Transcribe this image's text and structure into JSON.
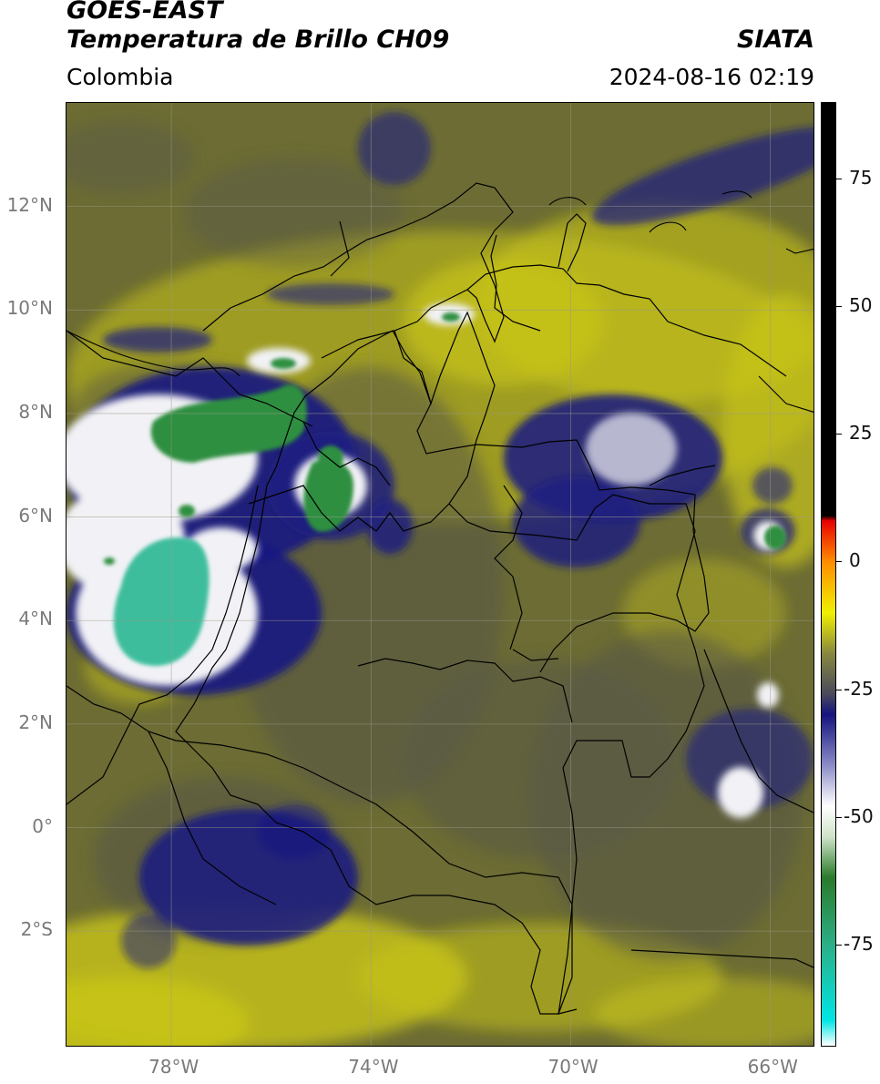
{
  "header": {
    "satellite": "GOES-EAST",
    "product": "Temperatura de Brillo CH09",
    "region": "Colombia",
    "agency": "SIATA",
    "datetime": "2024-08-16 02:19"
  },
  "map": {
    "lon_range": [
      -80.1,
      -65.1
    ],
    "lat_range": [
      -4.25,
      14.0
    ],
    "lat_ticks": [
      {
        "value": 12,
        "label": "12°N"
      },
      {
        "value": 10,
        "label": "10°N"
      },
      {
        "value": 8,
        "label": "8°N"
      },
      {
        "value": 6,
        "label": "6°N"
      },
      {
        "value": 4,
        "label": "4°N"
      },
      {
        "value": 2,
        "label": "2°N"
      },
      {
        "value": 0,
        "label": "0°"
      },
      {
        "value": -2,
        "label": "2°S"
      }
    ],
    "lon_ticks": [
      {
        "value": -78,
        "label": "78°W"
      },
      {
        "value": -74,
        "label": "74°W"
      },
      {
        "value": -70,
        "label": "70°W"
      },
      {
        "value": -66,
        "label": "66°W"
      }
    ],
    "grid": true,
    "colors": {
      "background": "#6c6c34",
      "warm_yellow": "#c8c418",
      "gray": "#585848",
      "dark_blue": "#1a1a82",
      "white": "#f2f2f6",
      "green": "#2f8f3f",
      "teal": "#3ebd9c",
      "coast": "#000000",
      "grid": "#9a9a8a"
    }
  },
  "colorbar": {
    "range": [
      -95,
      90
    ],
    "ticks": [
      {
        "value": 75,
        "label": "75"
      },
      {
        "value": 50,
        "label": "50"
      },
      {
        "value": 25,
        "label": "25"
      },
      {
        "value": 0,
        "label": "0"
      },
      {
        "value": -25,
        "label": "-25"
      },
      {
        "value": -50,
        "label": "-50"
      },
      {
        "value": -75,
        "label": "-75"
      }
    ],
    "stops": [
      {
        "value": -95,
        "color": "#ffffff"
      },
      {
        "value": -90,
        "color": "#00e5e5"
      },
      {
        "value": -75,
        "color": "#2cae86"
      },
      {
        "value": -62,
        "color": "#2a7a2a"
      },
      {
        "value": -54,
        "color": "#cfe3c8"
      },
      {
        "value": -48,
        "color": "#ffffff"
      },
      {
        "value": -40,
        "color": "#8c8cc8"
      },
      {
        "value": -30,
        "color": "#14147e"
      },
      {
        "value": -26,
        "color": "#4a4a5c"
      },
      {
        "value": -18,
        "color": "#888840"
      },
      {
        "value": -10,
        "color": "#f0f000"
      },
      {
        "value": 0,
        "color": "#ff8c00"
      },
      {
        "value": 8,
        "color": "#e80000"
      },
      {
        "value": 9,
        "color": "#000000"
      },
      {
        "value": 90,
        "color": "#000000"
      }
    ]
  }
}
